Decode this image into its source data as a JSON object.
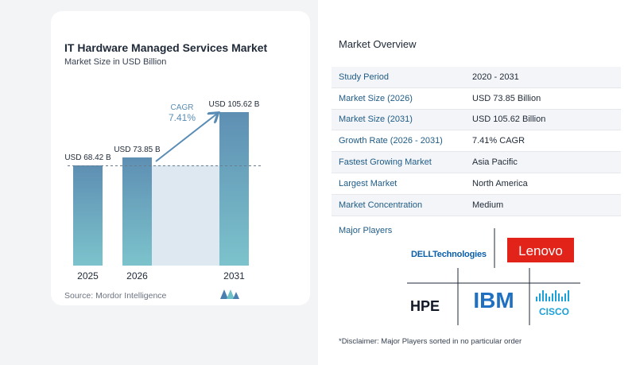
{
  "chart_data": {
    "type": "bar",
    "title": "IT Hardware Managed Services Market",
    "subtitle": "Market Size in USD Billion",
    "categories": [
      "2025",
      "2026",
      "2031"
    ],
    "values": [
      68.42,
      73.85,
      105.62
    ],
    "data_labels": [
      "USD 68.42 B",
      "USD 73.85 B",
      "USD 105.62 B"
    ],
    "annotation": {
      "label": "CAGR",
      "value": "7.41%"
    },
    "colors": {
      "bar_top": "#5e8fb3",
      "bar_bottom": "#7cc3cc",
      "band": "#dde8f0",
      "arrow": "#5a8db5"
    }
  },
  "source": "Source:  Mordor Intelligence",
  "overview": {
    "title": "Market Overview",
    "rows": [
      {
        "label": "Study Period",
        "value": "2020 - 2031"
      },
      {
        "label": "Market Size (2026)",
        "value": "USD 73.85 Billion"
      },
      {
        "label": "Market Size (2031)",
        "value": "USD 105.62 Billion"
      },
      {
        "label": "Growth Rate (2026 - 2031)",
        "value": "7.41% CAGR"
      },
      {
        "label": "Fastest Growing Market",
        "value": "Asia Pacific"
      },
      {
        "label": "Largest Market",
        "value": "North America"
      },
      {
        "label": "Market Concentration",
        "value": "Medium"
      }
    ]
  },
  "players": {
    "title": "Major Players",
    "logos": [
      "DELLTechnologies",
      "Lenovo",
      "HPE",
      "IBM",
      "CISCO"
    ]
  },
  "disclaimer": "*Disclaimer: Major Players sorted in no particular order"
}
